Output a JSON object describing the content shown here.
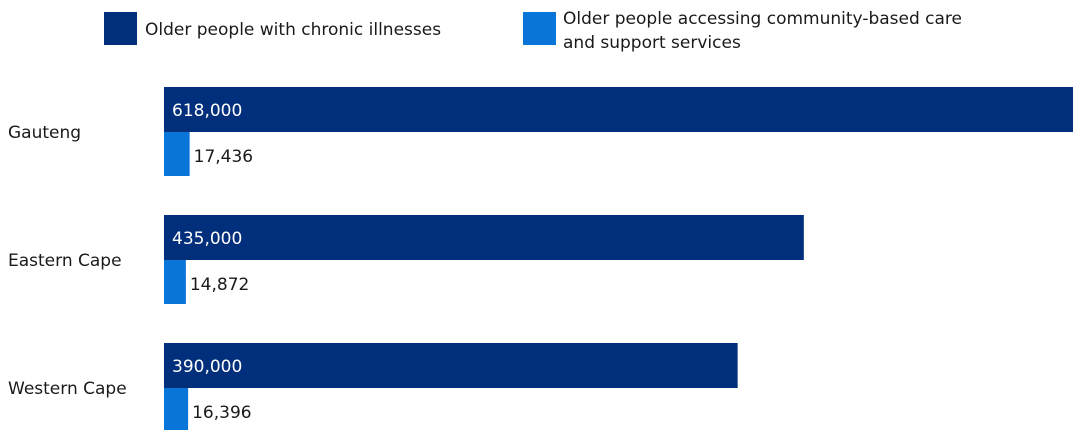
{
  "chart_data": {
    "type": "bar",
    "orientation": "horizontal",
    "categories": [
      "Gauteng",
      "Eastern Cape",
      "Western Cape"
    ],
    "series": [
      {
        "name": "Older people with chronic illnesses",
        "color": "#022f7b",
        "values": [
          618000,
          435000,
          390000
        ],
        "labels": [
          "618,000",
          "435,000",
          "390,000"
        ]
      },
      {
        "name": "Older people accessing community-based care and support services",
        "color": "#0a75d8",
        "values": [
          17436,
          14872,
          16396
        ],
        "labels": [
          "17,436",
          "14,872",
          "16,396"
        ]
      }
    ],
    "legend": {
      "placement": "top",
      "entries": [
        {
          "lines": [
            "Older people with chronic illnesses"
          ]
        },
        {
          "lines": [
            "Older people accessing community-based care",
            "and support services"
          ]
        }
      ]
    },
    "xlim": [
      0,
      618000
    ],
    "grid": false,
    "title": "",
    "xlabel": "",
    "ylabel": ""
  }
}
